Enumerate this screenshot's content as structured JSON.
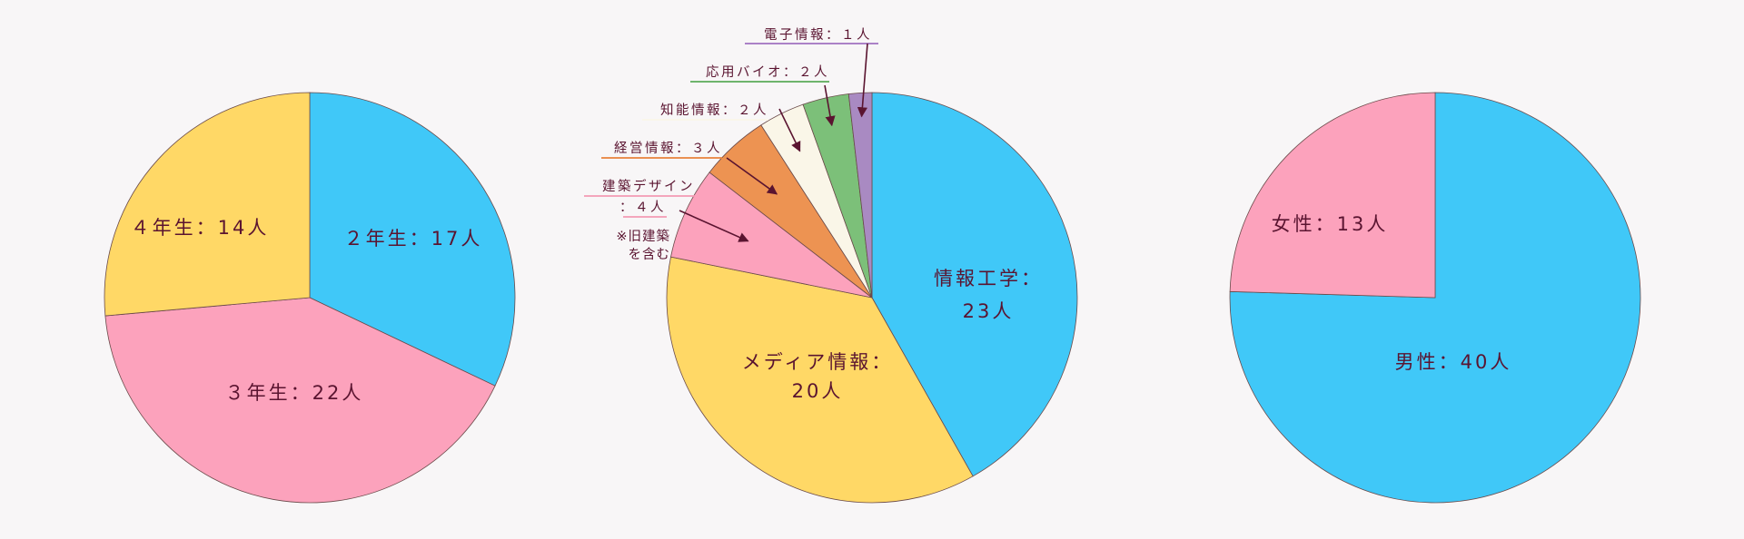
{
  "chart_data": [
    {
      "type": "pie",
      "slices": [
        {
          "label": "２年生：17人",
          "value": 17,
          "color": "#40c8f8"
        },
        {
          "label": "３年生：22人",
          "value": 22,
          "color": "#fca2bc"
        },
        {
          "label": "４年生：14人",
          "value": 14,
          "color": "#ffd866"
        }
      ]
    },
    {
      "type": "pie",
      "slices": [
        {
          "label": [
            "情報工学：",
            "23人"
          ],
          "value": 23,
          "color": "#40c8f8"
        },
        {
          "label": [
            "メディア情報：",
            "20人"
          ],
          "value": 20,
          "color": "#ffd866"
        },
        {
          "label": [
            "建築デザイン",
            "：４人"
          ],
          "value": 4,
          "color": "#fca2bc",
          "underline": "#f49ab4"
        },
        {
          "label": [
            "経営情報：３人"
          ],
          "value": 3,
          "color": "#ed9352",
          "underline": "#e8823a"
        },
        {
          "label": [
            "知能情報：２人"
          ],
          "value": 2,
          "color": "#faf6e8",
          "underline": "#faf6e8"
        },
        {
          "label": [
            "応用バイオ：２人"
          ],
          "value": 2,
          "color": "#7cc079",
          "underline": "#5aaa58"
        },
        {
          "label": [
            "電子情報：１人"
          ],
          "value": 1,
          "color": "#a98ac2",
          "underline": "#a070c0"
        }
      ],
      "note": [
        "※旧建築",
        "を含む"
      ]
    },
    {
      "type": "pie",
      "slices": [
        {
          "label": "男性：40人",
          "value": 40,
          "color": "#40c8f8"
        },
        {
          "label": "女性：13人",
          "value": 13,
          "color": "#fca2bc"
        }
      ]
    }
  ],
  "colors": {
    "text": "#5a1430",
    "arrow": "#5a1430",
    "outline": "#6a4a4a",
    "background": "#f8f6f7"
  }
}
